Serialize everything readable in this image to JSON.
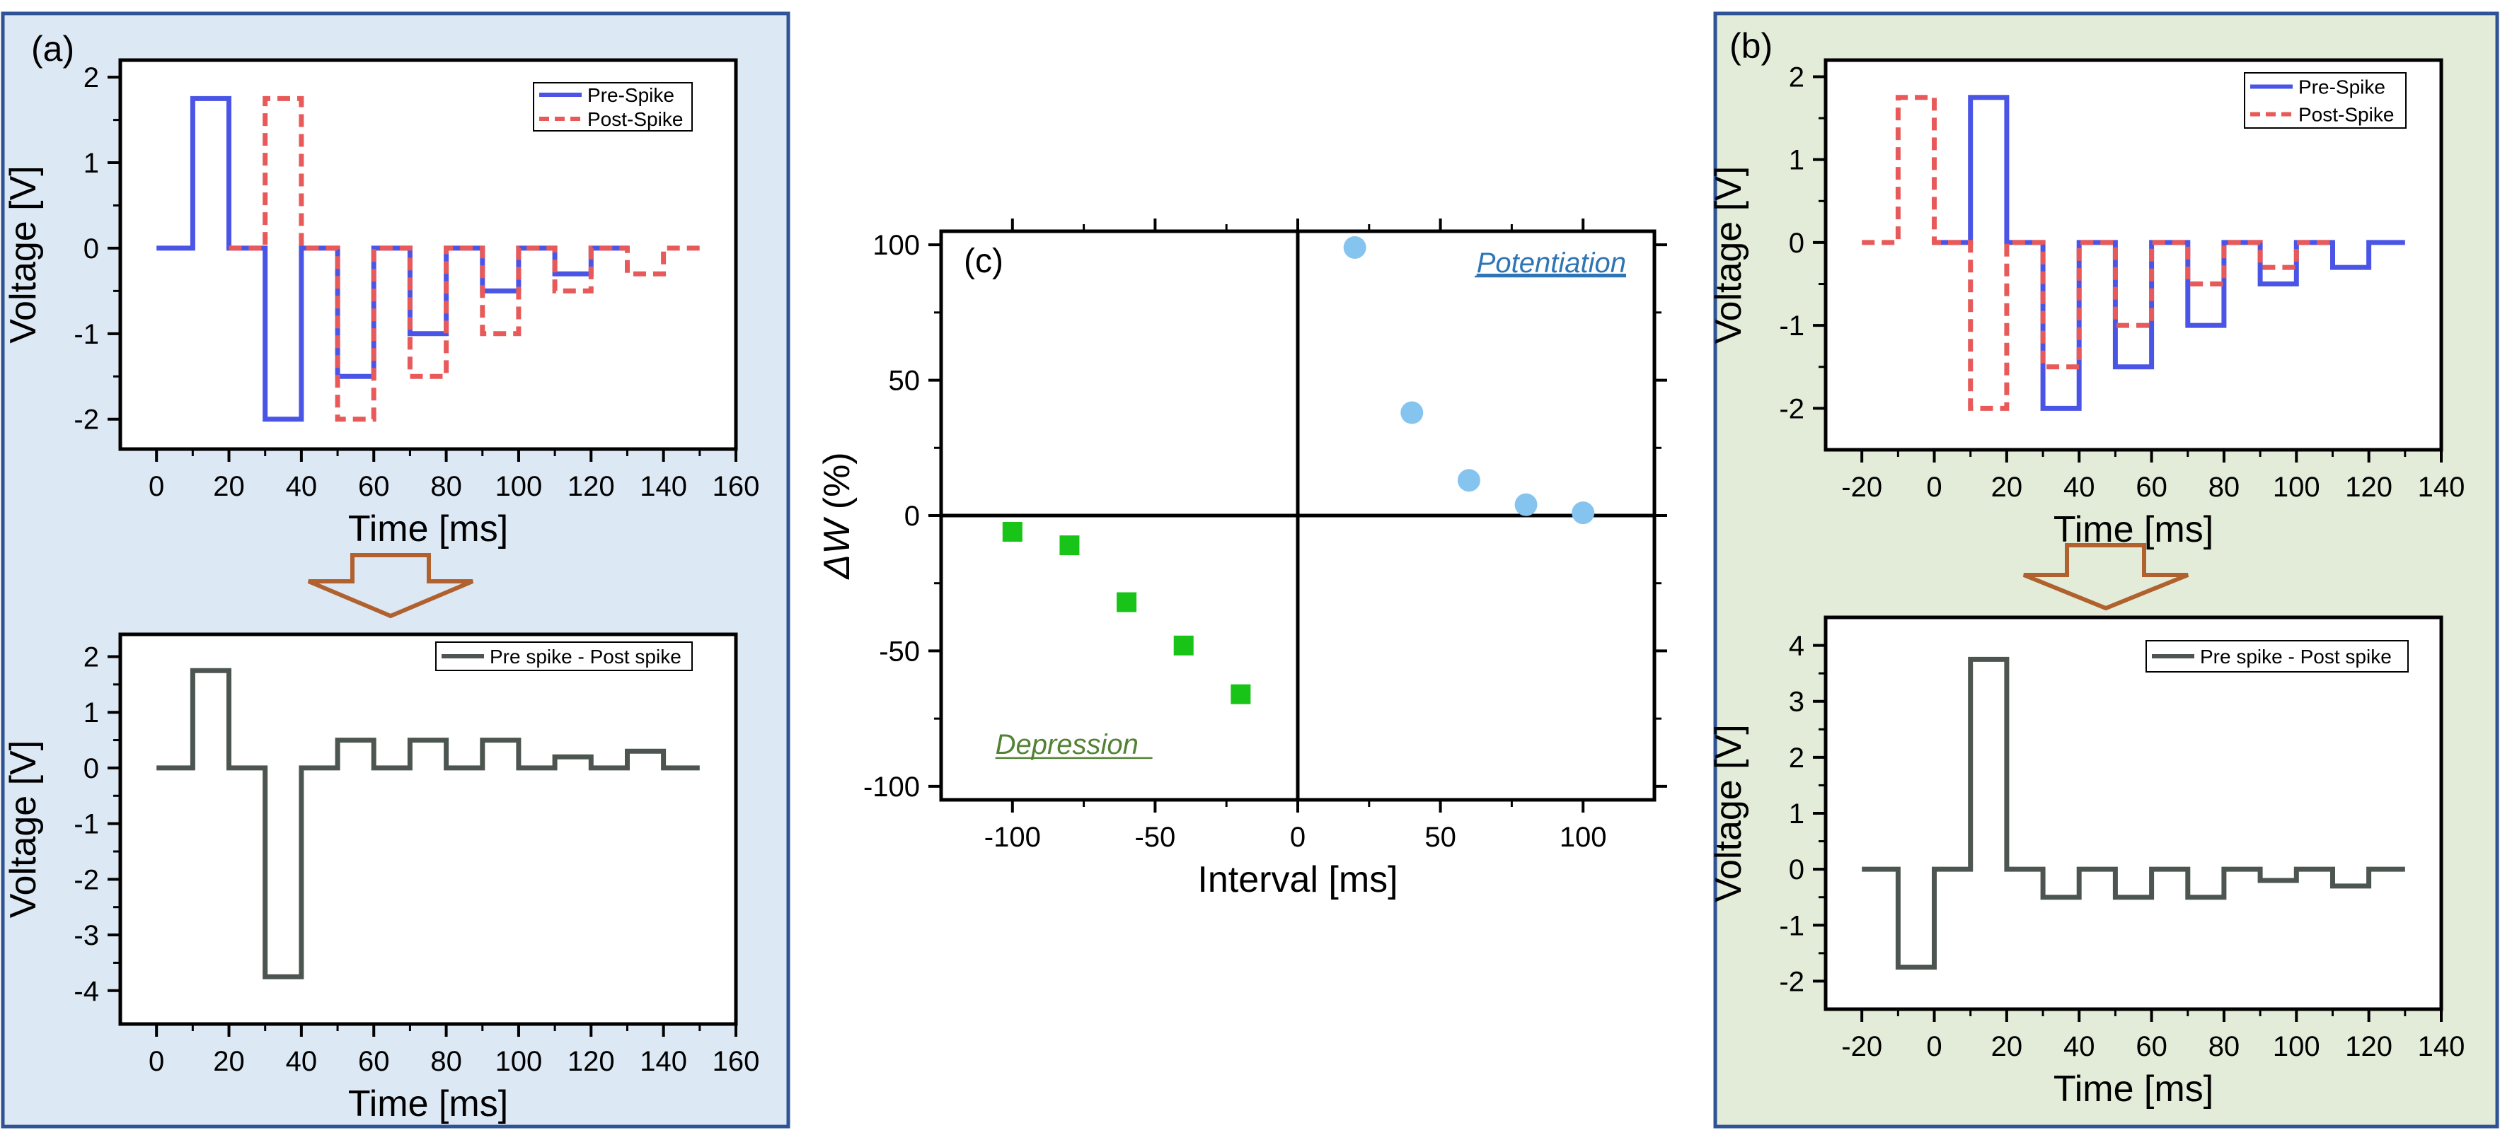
{
  "panels": {
    "a": {
      "label": "(a)",
      "background": "#dce8f4",
      "border_color": "#2f5496"
    },
    "b": {
      "label": "(b)",
      "background": "#e2ecd8",
      "border_color": "#2f5496"
    },
    "c": {
      "label": "(c)"
    }
  },
  "colors": {
    "pre": "#4a55e6",
    "post": "#e85a5a",
    "diff": "#4d5550",
    "arrow": "#b0612e",
    "potentiation": "#86c4f0",
    "depression": "#18c418",
    "potentiation_text": "#2e75b6",
    "depression_text": "#548235"
  },
  "arrows": {
    "a": "down-arrow",
    "b": "down-arrow"
  },
  "chart_data": [
    {
      "id": "a_top",
      "type": "line",
      "xlabel": "Time [ms]",
      "ylabel": "Voltage [V]",
      "xlim": [
        -10,
        160
      ],
      "ylim": [
        -2.35,
        2.2
      ],
      "xticks": [
        0,
        20,
        40,
        60,
        80,
        100,
        120,
        140,
        160
      ],
      "yticks": [
        -2,
        -1,
        0,
        1,
        2
      ],
      "legend_position": "top-right",
      "series": [
        {
          "name": "Pre-Spike",
          "style": "solid",
          "color": "#4a55e6",
          "x": [
            0,
            10,
            10,
            20,
            20,
            30,
            30,
            40,
            40,
            50,
            50,
            60,
            60,
            70,
            70,
            80,
            80,
            90,
            90,
            100,
            100,
            110,
            110,
            120,
            120,
            130
          ],
          "y": [
            0,
            0,
            1.75,
            1.75,
            0,
            0,
            -2,
            -2,
            0,
            0,
            -1.5,
            -1.5,
            0,
            0,
            -1,
            -1,
            0,
            0,
            -0.5,
            -0.5,
            0,
            0,
            -0.3,
            -0.3,
            0,
            0
          ]
        },
        {
          "name": "Post-Spike",
          "style": "dashed",
          "color": "#e85a5a",
          "x": [
            20,
            30,
            30,
            40,
            40,
            50,
            50,
            60,
            60,
            70,
            70,
            80,
            80,
            90,
            90,
            100,
            100,
            110,
            110,
            120,
            120,
            130,
            130,
            140,
            140,
            150
          ],
          "y": [
            0,
            0,
            1.75,
            1.75,
            0,
            0,
            -2,
            -2,
            0,
            0,
            -1.5,
            -1.5,
            0,
            0,
            -1,
            -1,
            0,
            0,
            -0.5,
            -0.5,
            0,
            0,
            -0.3,
            -0.3,
            0,
            0
          ]
        }
      ]
    },
    {
      "id": "a_bottom",
      "type": "line",
      "xlabel": "Time [ms]",
      "ylabel": "Voltage [V]",
      "xlim": [
        -10,
        160
      ],
      "ylim": [
        -4.6,
        2.4
      ],
      "xticks": [
        0,
        20,
        40,
        60,
        80,
        100,
        120,
        140,
        160
      ],
      "yticks": [
        -4,
        -3,
        -2,
        -1,
        0,
        1,
        2
      ],
      "legend_position": "top-right",
      "series": [
        {
          "name": "Pre spike - Post spike",
          "style": "solid",
          "color": "#4d5550",
          "x": [
            0,
            10,
            10,
            20,
            20,
            30,
            30,
            40,
            40,
            50,
            50,
            60,
            60,
            70,
            70,
            80,
            80,
            90,
            90,
            100,
            100,
            110,
            110,
            120,
            120,
            130,
            130,
            140,
            140,
            150
          ],
          "y": [
            0,
            0,
            1.75,
            1.75,
            0,
            0,
            -3.75,
            -3.75,
            0,
            0,
            0.5,
            0.5,
            0,
            0,
            0.5,
            0.5,
            0,
            0,
            0.5,
            0.5,
            0,
            0,
            0.2,
            0.2,
            0,
            0,
            0.3,
            0.3,
            0,
            0
          ]
        }
      ]
    },
    {
      "id": "b_top",
      "type": "line",
      "xlabel": "Time [ms]",
      "ylabel": "Voltage [V]",
      "xlim": [
        -30,
        140
      ],
      "ylim": [
        -2.5,
        2.2
      ],
      "xticks": [
        -20,
        0,
        20,
        40,
        60,
        80,
        100,
        120,
        140
      ],
      "yticks": [
        -2,
        -1,
        0,
        1,
        2
      ],
      "legend_position": "top-right",
      "series": [
        {
          "name": "Pre-Spike",
          "style": "solid",
          "color": "#4a55e6",
          "x": [
            0,
            10,
            10,
            20,
            20,
            30,
            30,
            40,
            40,
            50,
            50,
            60,
            60,
            70,
            70,
            80,
            80,
            90,
            90,
            100,
            100,
            110,
            110,
            120,
            120,
            130
          ],
          "y": [
            0,
            0,
            1.75,
            1.75,
            0,
            0,
            -2,
            -2,
            0,
            0,
            -1.5,
            -1.5,
            0,
            0,
            -1,
            -1,
            0,
            0,
            -0.5,
            -0.5,
            0,
            0,
            -0.3,
            -0.3,
            0,
            0
          ]
        },
        {
          "name": "Post-Spike",
          "style": "dashed",
          "color": "#e85a5a",
          "x": [
            -20,
            -10,
            -10,
            0,
            0,
            10,
            10,
            20,
            20,
            30,
            30,
            40,
            40,
            50,
            50,
            60,
            60,
            70,
            70,
            80,
            80,
            90,
            90,
            100,
            100,
            110
          ],
          "y": [
            0,
            0,
            1.75,
            1.75,
            0,
            0,
            -2,
            -2,
            0,
            0,
            -1.5,
            -1.5,
            0,
            0,
            -1,
            -1,
            0,
            0,
            -0.5,
            -0.5,
            0,
            0,
            -0.3,
            -0.3,
            0,
            0
          ]
        }
      ]
    },
    {
      "id": "b_bottom",
      "type": "line",
      "xlabel": "Time [ms]",
      "ylabel": "Voltage [V]",
      "xlim": [
        -30,
        140
      ],
      "ylim": [
        -2.5,
        4.5
      ],
      "xticks": [
        -20,
        0,
        20,
        40,
        60,
        80,
        100,
        120,
        140
      ],
      "yticks": [
        -2,
        -1,
        0,
        1,
        2,
        3,
        4
      ],
      "legend_position": "top-right",
      "series": [
        {
          "name": "Pre spike - Post spike",
          "style": "solid",
          "color": "#4d5550",
          "x": [
            -20,
            -10,
            -10,
            0,
            0,
            10,
            10,
            20,
            20,
            30,
            30,
            40,
            40,
            50,
            50,
            60,
            60,
            70,
            70,
            80,
            80,
            90,
            90,
            100,
            100,
            110,
            110,
            120,
            120,
            130
          ],
          "y": [
            0,
            0,
            -1.75,
            -1.75,
            0,
            0,
            3.75,
            3.75,
            0,
            0,
            -0.5,
            -0.5,
            0,
            0,
            -0.5,
            -0.5,
            0,
            0,
            -0.5,
            -0.5,
            0,
            0,
            -0.2,
            -0.2,
            0,
            0,
            -0.3,
            -0.3,
            0,
            0
          ]
        }
      ]
    },
    {
      "id": "c",
      "type": "scatter",
      "xlabel": "Interval [ms]",
      "ylabel_symbol": "ΔW",
      "ylabel_unit": " (%)",
      "xlim": [
        -125,
        125
      ],
      "ylim": [
        -105,
        105
      ],
      "xticks": [
        -100,
        -50,
        0,
        50,
        100
      ],
      "yticks": [
        -100,
        -50,
        0,
        50,
        100
      ],
      "annotations": [
        "Potentiation",
        "Depression"
      ],
      "series": [
        {
          "name": "Potentiation",
          "marker": "circle",
          "color": "#86c4f0",
          "x": [
            20,
            40,
            60,
            80,
            100
          ],
          "y": [
            99,
            38,
            13,
            4,
            1
          ]
        },
        {
          "name": "Depression",
          "marker": "square",
          "color": "#18c418",
          "x": [
            -100,
            -80,
            -60,
            -40,
            -20
          ],
          "y": [
            -6,
            -11,
            -32,
            -48,
            -66
          ]
        }
      ]
    }
  ]
}
